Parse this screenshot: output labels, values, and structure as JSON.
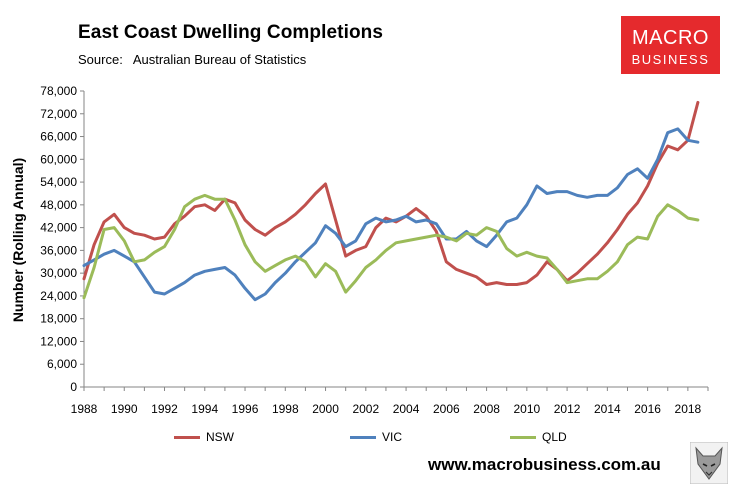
{
  "header": {
    "title": "East Coast Dwelling Completions",
    "source_label": "Source:",
    "source_value": "Australian Bureau of Statistics"
  },
  "logo": {
    "line1": "MACRO",
    "line2": "BUSINESS"
  },
  "footer": {
    "url": "www.macrobusiness.com.au"
  },
  "colors": {
    "nsw": "#c0504d",
    "vic": "#4f81bd",
    "qld": "#9bbb59",
    "logo_bg": "#e52a2d"
  },
  "chart_data": {
    "type": "line",
    "title": "East Coast Dwelling Completions",
    "ylabel": "Number (Rolling Annual)",
    "xlabel": "",
    "ylim": [
      0,
      78000
    ],
    "xlim": [
      1988,
      2019
    ],
    "yticks": [
      0,
      6000,
      12000,
      18000,
      24000,
      30000,
      36000,
      42000,
      48000,
      54000,
      60000,
      66000,
      72000,
      78000
    ],
    "ytick_labels": [
      "0",
      "6,000",
      "12,000",
      "18,000",
      "24,000",
      "30,000",
      "36,000",
      "42,000",
      "48,000",
      "54,000",
      "60,000",
      "66,000",
      "72,000",
      "78,000"
    ],
    "xticks": [
      1988,
      1990,
      1992,
      1994,
      1996,
      1998,
      2000,
      2002,
      2004,
      2006,
      2008,
      2010,
      2012,
      2014,
      2016,
      2018
    ],
    "xtick_labels": [
      "1988",
      "1990",
      "1992",
      "1994",
      "1996",
      "1998",
      "2000",
      "2002",
      "2004",
      "2006",
      "2008",
      "2010",
      "2012",
      "2014",
      "2016",
      "2018"
    ],
    "grid": false,
    "legend_position": "bottom",
    "series": [
      {
        "name": "NSW",
        "color": "#c0504d",
        "x": [
          1988,
          1988.5,
          1989,
          1989.5,
          1990,
          1990.5,
          1991,
          1991.5,
          1992,
          1992.5,
          1993,
          1993.5,
          1994,
          1994.5,
          1995,
          1995.5,
          1996,
          1996.5,
          1997,
          1997.5,
          1998,
          1998.5,
          1999,
          1999.5,
          2000,
          2000.5,
          2001,
          2001.5,
          2002,
          2002.5,
          2003,
          2003.5,
          2004,
          2004.5,
          2005,
          2005.5,
          2006,
          2006.5,
          2007,
          2007.5,
          2008,
          2008.5,
          2009,
          2009.5,
          2010,
          2010.5,
          2011,
          2011.5,
          2012,
          2012.5,
          2013,
          2013.5,
          2014,
          2014.5,
          2015,
          2015.5,
          2016,
          2016.5,
          2017,
          2017.5,
          2018,
          2018.5
        ],
        "values": [
          28500,
          37500,
          43500,
          45500,
          42000,
          40500,
          40000,
          39000,
          39500,
          43000,
          45000,
          47500,
          48000,
          46500,
          49500,
          48500,
          44000,
          41500,
          40000,
          42000,
          43500,
          45500,
          48000,
          51000,
          53500,
          44000,
          34500,
          36000,
          37000,
          42000,
          44500,
          43500,
          45000,
          47000,
          45000,
          41000,
          33000,
          31000,
          30000,
          29000,
          27000,
          27500,
          27000,
          27000,
          27500,
          29500,
          33000,
          31000,
          28000,
          30000,
          32500,
          35000,
          38000,
          41500,
          45500,
          48500,
          53000,
          59000,
          63500,
          62500,
          65000,
          75000
        ]
      },
      {
        "name": "VIC",
        "color": "#4f81bd",
        "x": [
          1988,
          1988.5,
          1989,
          1989.5,
          1990,
          1990.5,
          1991,
          1991.5,
          1992,
          1992.5,
          1993,
          1993.5,
          1994,
          1994.5,
          1995,
          1995.5,
          1996,
          1996.5,
          1997,
          1997.5,
          1998,
          1998.5,
          1999,
          1999.5,
          2000,
          2000.5,
          2001,
          2001.5,
          2002,
          2002.5,
          2003,
          2003.5,
          2004,
          2004.5,
          2005,
          2005.5,
          2006,
          2006.5,
          2007,
          2007.5,
          2008,
          2008.5,
          2009,
          2009.5,
          2010,
          2010.5,
          2011,
          2011.5,
          2012,
          2012.5,
          2013,
          2013.5,
          2014,
          2014.5,
          2015,
          2015.5,
          2016,
          2016.5,
          2017,
          2017.5,
          2018,
          2018.5
        ],
        "values": [
          32000,
          33500,
          35000,
          36000,
          34500,
          33000,
          29000,
          25000,
          24500,
          26000,
          27500,
          29500,
          30500,
          31000,
          31500,
          29500,
          26000,
          23000,
          24500,
          27500,
          30000,
          33000,
          35500,
          38000,
          42500,
          40500,
          37000,
          38500,
          43000,
          44500,
          43500,
          44000,
          45000,
          43500,
          44000,
          43000,
          39000,
          39000,
          41000,
          38500,
          37000,
          40000,
          43500,
          44500,
          48000,
          53000,
          51000,
          51500,
          51500,
          50500,
          50000,
          50500,
          50500,
          52500,
          56000,
          57500,
          55000,
          60000,
          67000,
          68000,
          65000,
          64500
        ]
      },
      {
        "name": "QLD",
        "color": "#9bbb59",
        "x": [
          1988,
          1988.5,
          1989,
          1989.5,
          1990,
          1990.5,
          1991,
          1991.5,
          1992,
          1992.5,
          1993,
          1993.5,
          1994,
          1994.5,
          1995,
          1995.5,
          1996,
          1996.5,
          1997,
          1997.5,
          1998,
          1998.5,
          1999,
          1999.5,
          2000,
          2000.5,
          2001,
          2001.5,
          2002,
          2002.5,
          2003,
          2003.5,
          2004,
          2004.5,
          2005,
          2005.5,
          2006,
          2006.5,
          2007,
          2007.5,
          2008,
          2008.5,
          2009,
          2009.5,
          2010,
          2010.5,
          2011,
          2011.5,
          2012,
          2012.5,
          2013,
          2013.5,
          2014,
          2014.5,
          2015,
          2015.5,
          2016,
          2016.5,
          2017,
          2017.5,
          2018,
          2018.5
        ],
        "values": [
          23500,
          31500,
          41500,
          42000,
          38500,
          33000,
          33500,
          35500,
          37000,
          41500,
          47500,
          49500,
          50500,
          49500,
          49500,
          44000,
          37500,
          33000,
          30500,
          32000,
          33500,
          34500,
          33000,
          29000,
          32500,
          30500,
          25000,
          28000,
          31500,
          33500,
          36000,
          38000,
          38500,
          39000,
          39500,
          40000,
          39500,
          38500,
          40500,
          40000,
          42000,
          41000,
          36500,
          34500,
          35500,
          34500,
          34000,
          31000,
          27500,
          28000,
          28500,
          28500,
          30500,
          33000,
          37500,
          39500,
          39000,
          45000,
          48000,
          46500,
          44500,
          44000
        ]
      }
    ]
  }
}
